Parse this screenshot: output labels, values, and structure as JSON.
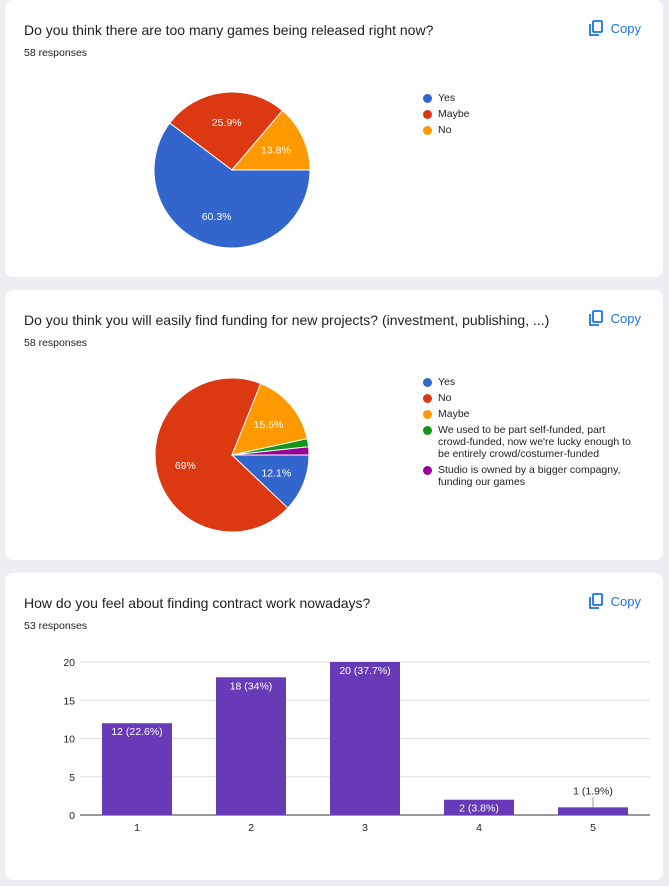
{
  "copy_label": "Copy",
  "colors": {
    "blue": "#3366cc",
    "red": "#dc3912",
    "orange": "#ff9900",
    "green": "#109618",
    "purple": "#990099",
    "bar": "#673ab7",
    "link": "#1a73e8"
  },
  "questions": [
    {
      "title": "Do you think there are too many games being released right now?",
      "responses": "58 responses"
    },
    {
      "title": "Do you think you will easily find funding for new projects? (investment, publishing, ...)",
      "responses": "58 responses"
    },
    {
      "title": "How do you feel about finding contract work nowadays?",
      "responses": "53 responses"
    }
  ],
  "chart_data": [
    {
      "type": "pie",
      "labels": [
        "Yes",
        "Maybe",
        "No"
      ],
      "values": [
        60.3,
        25.9,
        13.8
      ],
      "data_labels": [
        "60.3%",
        "25.9%",
        "13.8%"
      ],
      "colors": [
        "#3366cc",
        "#dc3912",
        "#ff9900"
      ],
      "legend": "right"
    },
    {
      "type": "pie",
      "labels": [
        "Yes",
        "No",
        "Maybe",
        "We used to be part self-funded, part crowd-funded, now we're lucky enough to be entirely crowd/costumer-funded",
        "Studio is owned by a bigger compagny, funding our games"
      ],
      "values": [
        12.1,
        69,
        15.5,
        1.7,
        1.7
      ],
      "data_labels": [
        "12.1%",
        "69%",
        "15.5%",
        "",
        ""
      ],
      "colors": [
        "#3366cc",
        "#dc3912",
        "#ff9900",
        "#109618",
        "#990099"
      ],
      "legend": "right"
    },
    {
      "type": "bar",
      "categories": [
        "1",
        "2",
        "3",
        "4",
        "5"
      ],
      "values": [
        12,
        18,
        20,
        2,
        1
      ],
      "data_labels": [
        "12 (22.6%)",
        "18 (34%)",
        "20 (37.7%)",
        "2 (3.8%)",
        "1 (1.9%)"
      ],
      "yticks": [
        "0",
        "5",
        "10",
        "15",
        "20"
      ],
      "ylim": [
        0,
        20
      ]
    }
  ]
}
